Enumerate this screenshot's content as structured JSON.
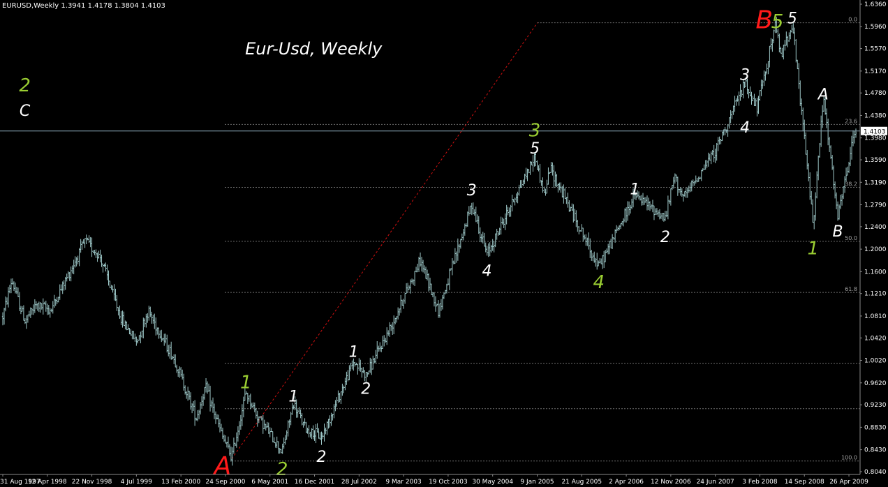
{
  "window": {
    "info_line": "EURUSD,Weekly  1.3941 1.4178 1.3804 1.4103",
    "current_price": "1.4103"
  },
  "colors": {
    "background": "#000000",
    "bars": "#9ec8c8",
    "grid": "#6e6e6e",
    "current_line": "#8fb0c0",
    "trendline": "#d01010",
    "wave_white": "#ffffff",
    "wave_green": "#9acd32",
    "wave_red": "#ff1a1a"
  },
  "chart_data": {
    "type": "ohlc",
    "title": "Eur-Usd, Weekly",
    "symbol": "EURUSD",
    "timeframe": "Weekly",
    "last_bar": {
      "open": 1.3941,
      "high": 1.4178,
      "low": 1.3804,
      "close": 1.4103
    },
    "ylim": [
      0.804,
      1.636
    ],
    "y_ticks": [
      "1.6360",
      "1.5960",
      "1.5570",
      "1.5170",
      "1.4780",
      "1.4380",
      "1.3980",
      "1.3590",
      "1.3190",
      "1.2790",
      "1.2400",
      "1.2000",
      "1.1600",
      "1.1210",
      "1.0810",
      "1.0420",
      "1.0020",
      "0.9620",
      "0.9230",
      "0.8830",
      "0.8430",
      "0.8040"
    ],
    "x_ticks": [
      "31 Aug 1997",
      "12 Apr 1998",
      "22 Nov 1998",
      "4 Jul 1999",
      "13 Feb 2000",
      "24 Sep 2000",
      "6 May 2001",
      "16 Dec 2001",
      "28 Jul 2002",
      "9 Mar 2003",
      "19 Oct 2003",
      "30 May 2004",
      "9 Jan 2005",
      "21 Aug 2005",
      "2 Apr 2006",
      "12 Nov 2006",
      "24 Jun 2007",
      "3 Feb 2008",
      "14 Sep 2008",
      "26 Apr 2009"
    ],
    "price_path": [
      {
        "date": "1997-08-31",
        "price": 1.08
      },
      {
        "date": "1997-10-15",
        "price": 1.145
      },
      {
        "date": "1997-12-20",
        "price": 1.072
      },
      {
        "date": "1998-02-15",
        "price": 1.1
      },
      {
        "date": "1998-05-01",
        "price": 1.092
      },
      {
        "date": "1998-06-01",
        "price": 1.115
      },
      {
        "date": "1998-10-20",
        "price": 1.215
      },
      {
        "date": "1999-01-05",
        "price": 1.185
      },
      {
        "date": "1999-04-20",
        "price": 1.075
      },
      {
        "date": "1999-07-05",
        "price": 1.035
      },
      {
        "date": "1999-09-01",
        "price": 1.09
      },
      {
        "date": "1999-11-01",
        "price": 1.05
      },
      {
        "date": "2000-01-15",
        "price": 1.0
      },
      {
        "date": "2000-05-01",
        "price": 0.9
      },
      {
        "date": "2000-06-15",
        "price": 0.955
      },
      {
        "date": "2000-09-10",
        "price": 0.865
      },
      {
        "date": "2000-10-26",
        "price": 0.83
      },
      {
        "date": "2001-01-05",
        "price": 0.945
      },
      {
        "date": "2001-03-01",
        "price": 0.905
      },
      {
        "date": "2001-07-06",
        "price": 0.84
      },
      {
        "date": "2001-09-01",
        "price": 0.925
      },
      {
        "date": "2001-11-01",
        "price": 0.88
      },
      {
        "date": "2002-01-20",
        "price": 0.865
      },
      {
        "date": "2002-07-01",
        "price": 1.0
      },
      {
        "date": "2002-09-01",
        "price": 0.975
      },
      {
        "date": "2003-01-01",
        "price": 1.06
      },
      {
        "date": "2003-06-01",
        "price": 1.18
      },
      {
        "date": "2003-09-01",
        "price": 1.09
      },
      {
        "date": "2004-02-15",
        "price": 1.28
      },
      {
        "date": "2004-05-01",
        "price": 1.19
      },
      {
        "date": "2004-12-28",
        "price": 1.365
      },
      {
        "date": "2005-02-15",
        "price": 1.295
      },
      {
        "date": "2005-03-15",
        "price": 1.345
      },
      {
        "date": "2005-11-15",
        "price": 1.168
      },
      {
        "date": "2006-01-20",
        "price": 1.215
      },
      {
        "date": "2006-05-15",
        "price": 1.295
      },
      {
        "date": "2006-10-15",
        "price": 1.255
      },
      {
        "date": "2006-12-01",
        "price": 1.33
      },
      {
        "date": "2007-01-15",
        "price": 1.29
      },
      {
        "date": "2007-07-01",
        "price": 1.38
      },
      {
        "date": "2007-11-20",
        "price": 1.495
      },
      {
        "date": "2008-01-20",
        "price": 1.45
      },
      {
        "date": "2008-04-20",
        "price": 1.598
      },
      {
        "date": "2008-05-20",
        "price": 1.545
      },
      {
        "date": "2008-07-15",
        "price": 1.603
      },
      {
        "date": "2008-10-28",
        "price": 1.245
      },
      {
        "date": "2008-12-18",
        "price": 1.47
      },
      {
        "date": "2009-03-01",
        "price": 1.255
      },
      {
        "date": "2009-05-25",
        "price": 1.41
      }
    ],
    "fib_levels": [
      {
        "label": "0.0",
        "price": 1.603
      },
      {
        "label": "23.6",
        "price": 1.422
      },
      {
        "label": "38.2",
        "price": 1.31
      },
      {
        "label": "50.0",
        "price": 1.214
      },
      {
        "label": "61.8",
        "price": 1.123
      },
      {
        "label": "100.0",
        "price": 0.823
      }
    ],
    "extra_grid": [
      0.997,
      0.916
    ],
    "trendline": {
      "from": {
        "date": "2000-10-26",
        "price": 0.827
      },
      "to": {
        "date": "2005-01-10",
        "price": 1.603
      }
    },
    "wave_labels": [
      {
        "text": "Eur-Usd, Weekly",
        "date": "2001-01-01",
        "price": 1.555,
        "color": "white",
        "size": 24,
        "role": "title"
      },
      {
        "text": "2",
        "date": "1997-12-20",
        "price": 1.49,
        "color": "green",
        "size": 26
      },
      {
        "text": "C",
        "date": "1997-12-20",
        "price": 1.445,
        "color": "white",
        "size": 22
      },
      {
        "text": "A",
        "date": "2000-09-10",
        "price": 0.812,
        "color": "red",
        "size": 36
      },
      {
        "text": "1",
        "date": "2001-01-05",
        "price": 0.962,
        "color": "green",
        "size": 26
      },
      {
        "text": "2",
        "date": "2001-07-06",
        "price": 0.807,
        "color": "green",
        "size": 26
      },
      {
        "text": "1",
        "date": "2001-09-01",
        "price": 0.936,
        "color": "white",
        "size": 22
      },
      {
        "text": "2",
        "date": "2002-01-20",
        "price": 0.829,
        "color": "white",
        "size": 22
      },
      {
        "text": "1",
        "date": "2002-07-01",
        "price": 1.016,
        "color": "white",
        "size": 22
      },
      {
        "text": "2",
        "date": "2002-09-01",
        "price": 0.95,
        "color": "white",
        "size": 22
      },
      {
        "text": "3",
        "date": "2004-02-15",
        "price": 1.303,
        "color": "white",
        "size": 22
      },
      {
        "text": "4",
        "date": "2004-05-01",
        "price": 1.16,
        "color": "white",
        "size": 22
      },
      {
        "text": "3",
        "date": "2004-12-28",
        "price": 1.41,
        "color": "green",
        "size": 26
      },
      {
        "text": "5",
        "date": "2004-12-28",
        "price": 1.378,
        "color": "white",
        "size": 22
      },
      {
        "text": "4",
        "date": "2005-11-15",
        "price": 1.14,
        "color": "green",
        "size": 26
      },
      {
        "text": "1",
        "date": "2006-05-15",
        "price": 1.305,
        "color": "white",
        "size": 22
      },
      {
        "text": "2",
        "date": "2006-10-15",
        "price": 1.22,
        "color": "white",
        "size": 22
      },
      {
        "text": "3",
        "date": "2007-11-20",
        "price": 1.509,
        "color": "white",
        "size": 22
      },
      {
        "text": "4",
        "date": "2007-11-20",
        "price": 1.415,
        "color": "white",
        "size": 22
      },
      {
        "text": "B",
        "date": "2008-02-25",
        "price": 1.6055,
        "color": "red",
        "size": 36
      },
      {
        "text": "5",
        "date": "2008-05-01",
        "price": 1.604,
        "color": "green",
        "size": 28
      },
      {
        "text": "5",
        "date": "2008-07-15",
        "price": 1.609,
        "color": "white",
        "size": 22
      },
      {
        "text": "A",
        "date": "2008-12-18",
        "price": 1.474,
        "color": "white",
        "size": 22
      },
      {
        "text": "1",
        "date": "2008-10-28",
        "price": 1.2,
        "color": "green",
        "size": 26
      },
      {
        "text": "B",
        "date": "2009-03-01",
        "price": 1.23,
        "color": "white",
        "size": 22
      }
    ]
  }
}
